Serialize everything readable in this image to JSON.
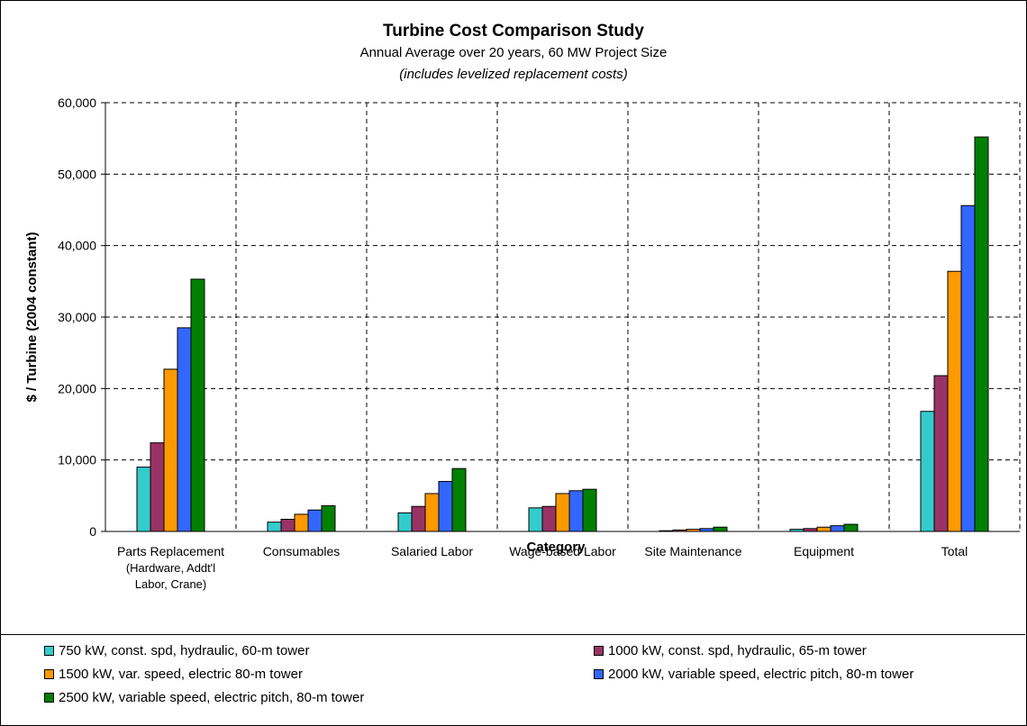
{
  "chart_data": {
    "type": "bar",
    "title": "Turbine Cost Comparison Study",
    "subtitle": "Annual Average over 20 years, 60 MW Project Size",
    "note": "(includes levelized replacement costs)",
    "xlabel": "Category",
    "ylabel": "$ / Turbine (2004 constant)",
    "ylim": [
      0,
      60000
    ],
    "yticks": [
      "0",
      "10,000",
      "20,000",
      "30,000",
      "40,000",
      "50,000",
      "60,000"
    ],
    "ytick_values": [
      0,
      10000,
      20000,
      30000,
      40000,
      50000,
      60000
    ],
    "grid": true,
    "legend_position": "bottom",
    "categories": [
      [
        "Parts Replacement",
        "(Hardware, Addt'l",
        "Labor, Crane)"
      ],
      [
        "Consumables"
      ],
      [
        "Salaried Labor"
      ],
      [
        "Wage-based Labor"
      ],
      [
        "Site Maintenance"
      ],
      [
        "Equipment"
      ],
      [
        "Total"
      ]
    ],
    "series": [
      {
        "name": "750 kW, const. spd, hydraulic, 60-m tower",
        "color": "#33CCCC",
        "values": [
          9000,
          1300,
          2600,
          3300,
          100,
          300,
          16800
        ]
      },
      {
        "name": "1000 kW, const. spd, hydraulic, 65-m tower",
        "color": "#993366",
        "values": [
          12400,
          1700,
          3500,
          3500,
          200,
          400,
          21800
        ]
      },
      {
        "name": "1500 kW, var. speed, electric 80-m tower",
        "color": "#FF9900",
        "values": [
          22700,
          2400,
          5300,
          5300,
          300,
          600,
          36400
        ]
      },
      {
        "name": "2000 kW, variable speed, electric pitch, 80-m tower",
        "color": "#3366FF",
        "values": [
          28500,
          3000,
          7000,
          5700,
          400,
          800,
          45600
        ]
      },
      {
        "name": "2500 kW, variable speed, electric pitch, 80-m tower",
        "color": "#008000",
        "values": [
          35300,
          3600,
          8800,
          5900,
          600,
          1000,
          55200
        ]
      }
    ]
  }
}
